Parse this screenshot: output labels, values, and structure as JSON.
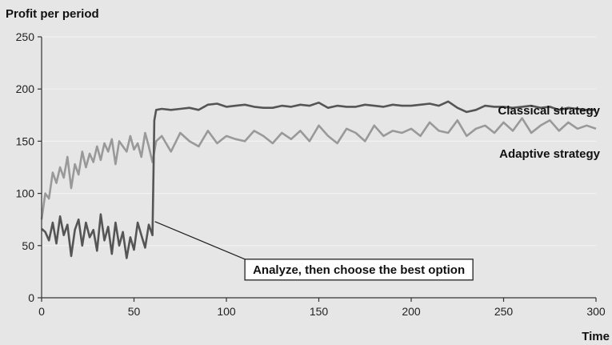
{
  "chart_data": {
    "type": "line",
    "title": "",
    "ylabel": "Profit per period",
    "xlabel": "Time",
    "xlim": [
      0,
      300
    ],
    "ylim": [
      0,
      250
    ],
    "xticks": [
      0,
      50,
      100,
      150,
      200,
      250,
      300
    ],
    "yticks": [
      0,
      50,
      100,
      150,
      200,
      250
    ],
    "grid": "horizontal",
    "colors": {
      "background": "#e6e6e6",
      "grid": "#f2f2f2",
      "axis": "#333333",
      "classical": "#555555",
      "adaptive": "#999999"
    },
    "series": [
      {
        "name": "Classical strategy",
        "color": "#555555",
        "x": [
          0,
          2,
          4,
          6,
          8,
          10,
          12,
          14,
          16,
          18,
          20,
          22,
          24,
          26,
          28,
          30,
          32,
          34,
          36,
          38,
          40,
          42,
          44,
          46,
          48,
          50,
          52,
          54,
          56,
          58,
          60,
          61,
          62,
          65,
          70,
          75,
          80,
          85,
          90,
          95,
          100,
          105,
          110,
          115,
          120,
          125,
          130,
          135,
          140,
          145,
          150,
          155,
          160,
          165,
          170,
          175,
          180,
          185,
          190,
          195,
          200,
          205,
          210,
          215,
          220,
          225,
          230,
          235,
          240,
          245,
          250,
          255,
          260,
          265,
          270,
          275,
          280,
          285,
          290,
          295,
          300
        ],
        "y": [
          66,
          63,
          55,
          72,
          52,
          78,
          60,
          70,
          40,
          65,
          75,
          50,
          72,
          58,
          65,
          45,
          80,
          55,
          68,
          42,
          72,
          50,
          63,
          38,
          58,
          46,
          72,
          60,
          48,
          70,
          60,
          170,
          180,
          181,
          180,
          181,
          182,
          180,
          185,
          186,
          183,
          184,
          185,
          183,
          182,
          182,
          184,
          183,
          185,
          184,
          187,
          182,
          184,
          183,
          183,
          185,
          184,
          183,
          185,
          184,
          184,
          185,
          186,
          184,
          188,
          182,
          178,
          180,
          184,
          183,
          183,
          182,
          183,
          184,
          182,
          183,
          180,
          182,
          181,
          180,
          180
        ]
      },
      {
        "name": "Adaptive strategy",
        "color": "#999999",
        "x": [
          0,
          2,
          4,
          6,
          8,
          10,
          12,
          14,
          16,
          18,
          20,
          22,
          24,
          26,
          28,
          30,
          32,
          34,
          36,
          38,
          40,
          42,
          44,
          46,
          48,
          50,
          52,
          54,
          56,
          58,
          60,
          62,
          65,
          70,
          75,
          80,
          85,
          90,
          95,
          100,
          105,
          110,
          115,
          120,
          125,
          130,
          135,
          140,
          145,
          150,
          155,
          160,
          165,
          170,
          175,
          180,
          185,
          190,
          195,
          200,
          205,
          210,
          215,
          220,
          225,
          230,
          235,
          240,
          245,
          250,
          255,
          260,
          265,
          270,
          275,
          280,
          285,
          290,
          295,
          300
        ],
        "y": [
          75,
          100,
          95,
          120,
          110,
          125,
          115,
          135,
          105,
          128,
          118,
          140,
          125,
          138,
          130,
          145,
          132,
          148,
          140,
          152,
          128,
          150,
          145,
          140,
          155,
          142,
          148,
          135,
          158,
          145,
          130,
          150,
          155,
          140,
          158,
          150,
          145,
          160,
          148,
          155,
          152,
          150,
          160,
          155,
          148,
          158,
          152,
          160,
          150,
          165,
          155,
          148,
          162,
          158,
          150,
          165,
          155,
          160,
          158,
          162,
          155,
          168,
          160,
          158,
          170,
          155,
          162,
          165,
          158,
          168,
          160,
          172,
          158,
          165,
          170,
          160,
          168,
          162,
          165,
          162
        ]
      }
    ],
    "annotations": [
      {
        "text": "Analyze, then choose the best option",
        "x": 60,
        "y": 73,
        "box_at": [
          110,
          17
        ]
      }
    ]
  }
}
